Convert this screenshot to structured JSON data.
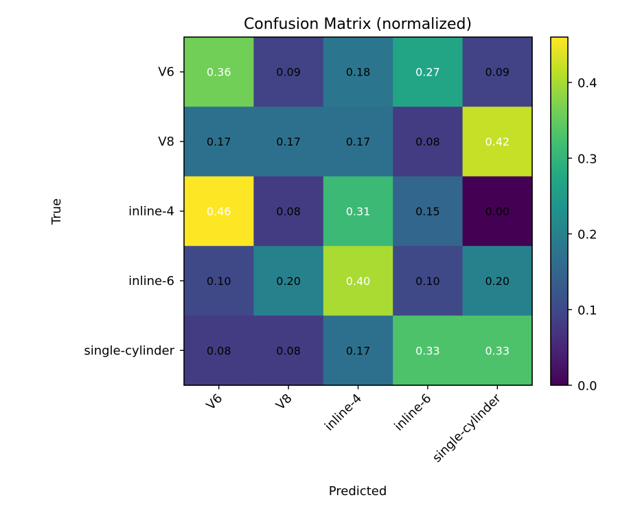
{
  "chart_data": {
    "type": "heatmap",
    "title": "Confusion Matrix (normalized)",
    "xlabel": "Predicted",
    "ylabel": "True",
    "x_categories": [
      "V6",
      "V8",
      "inline-4",
      "inline-6",
      "single-cylinder"
    ],
    "y_categories": [
      "V6",
      "V8",
      "inline-4",
      "inline-6",
      "single-cylinder"
    ],
    "values": [
      [
        0.36,
        0.09,
        0.18,
        0.27,
        0.09
      ],
      [
        0.17,
        0.17,
        0.17,
        0.08,
        0.42
      ],
      [
        0.46,
        0.08,
        0.31,
        0.15,
        0.0
      ],
      [
        0.1,
        0.2,
        0.4,
        0.1,
        0.2
      ],
      [
        0.08,
        0.08,
        0.17,
        0.33,
        0.33
      ]
    ],
    "value_labels": [
      [
        "0.36",
        "0.09",
        "0.18",
        "0.27",
        "0.09"
      ],
      [
        "0.17",
        "0.17",
        "0.17",
        "0.08",
        "0.42"
      ],
      [
        "0.46",
        "0.08",
        "0.31",
        "0.15",
        "0.00"
      ],
      [
        "0.10",
        "0.20",
        "0.40",
        "0.10",
        "0.20"
      ],
      [
        "0.08",
        "0.08",
        "0.17",
        "0.33",
        "0.33"
      ]
    ],
    "colormap": "viridis",
    "vmin": 0.0,
    "vmax": 0.46,
    "colorbar_ticks": [
      0.0,
      0.1,
      0.2,
      0.3,
      0.4
    ],
    "colorbar_tick_labels": [
      "0.0",
      "0.1",
      "0.2",
      "0.3",
      "0.4"
    ],
    "label_color_threshold": 0.23,
    "label_colors": {
      "dark_cell": "#ffffff",
      "light_cell": "#000000"
    },
    "frame_color": "#000000"
  }
}
